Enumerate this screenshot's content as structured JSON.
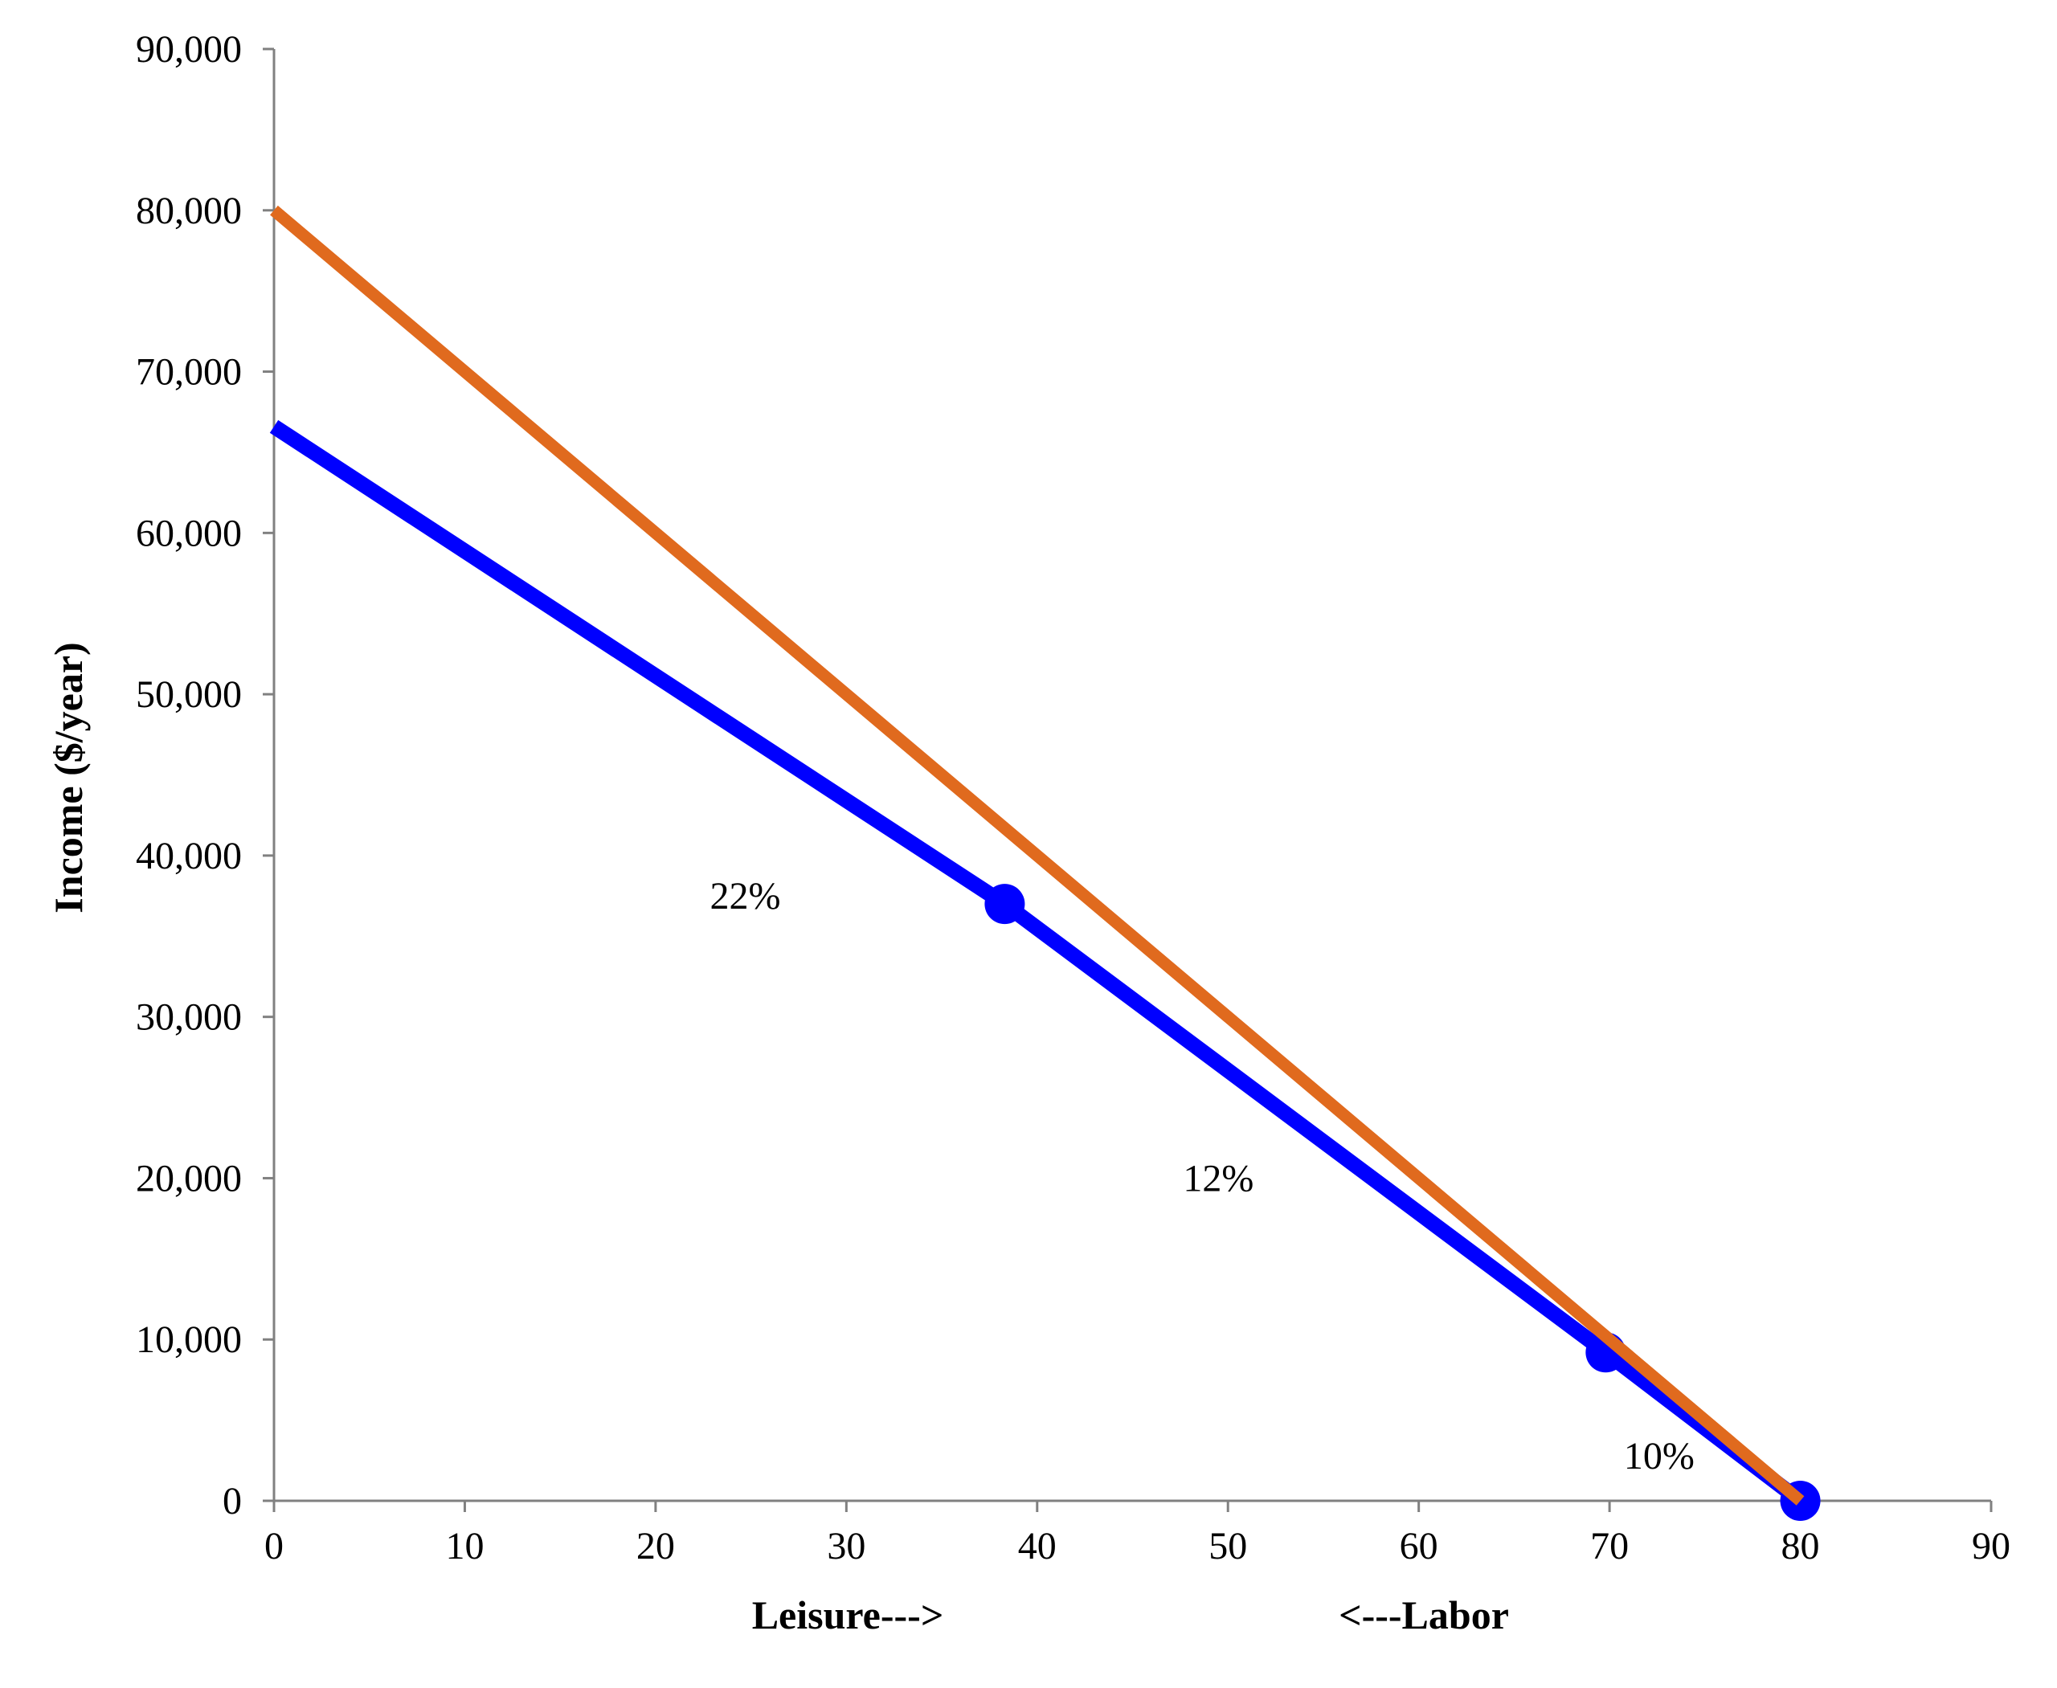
{
  "chart_data": {
    "type": "line",
    "title": "",
    "xlabel_left": "Leisure--->",
    "xlabel_right": "<---Labor",
    "ylabel": "Income ($/year)",
    "xlim": [
      0,
      90
    ],
    "ylim": [
      0,
      90000
    ],
    "x_ticks": [
      0,
      10,
      20,
      30,
      40,
      50,
      60,
      70,
      80,
      90
    ],
    "x_tick_labels": [
      "0",
      "10",
      "20",
      "30",
      "40",
      "50",
      "60",
      "70",
      "80",
      "90"
    ],
    "y_ticks": [
      0,
      10000,
      20000,
      30000,
      40000,
      50000,
      60000,
      70000,
      80000,
      90000
    ],
    "y_tick_labels": [
      "0",
      "10,000",
      "20,000",
      "30,000",
      "40,000",
      "50,000",
      "60,000",
      "70,000",
      "80,000",
      "90,000"
    ],
    "grid": false,
    "legend": "none",
    "series": [
      {
        "color": "#E06A1E",
        "x": [
          0,
          80
        ],
        "y": [
          80000,
          0
        ]
      },
      {
        "color": "#0000FF",
        "x": [
          0,
          38.3,
          69.8,
          80
        ],
        "y": [
          66600,
          37000,
          9200,
          0
        ],
        "markers": [
          {
            "x": 38.3,
            "y": 37000
          },
          {
            "x": 69.8,
            "y": 9200
          },
          {
            "x": 80,
            "y": 0
          }
        ]
      }
    ],
    "annotations": [
      {
        "text": "22%",
        "x": 24.7,
        "y": 37500
      },
      {
        "text": "12%",
        "x": 49.5,
        "y": 20000
      },
      {
        "text": "10%",
        "x": 72.6,
        "y": 2800
      }
    ],
    "axis_color": "#808080"
  }
}
